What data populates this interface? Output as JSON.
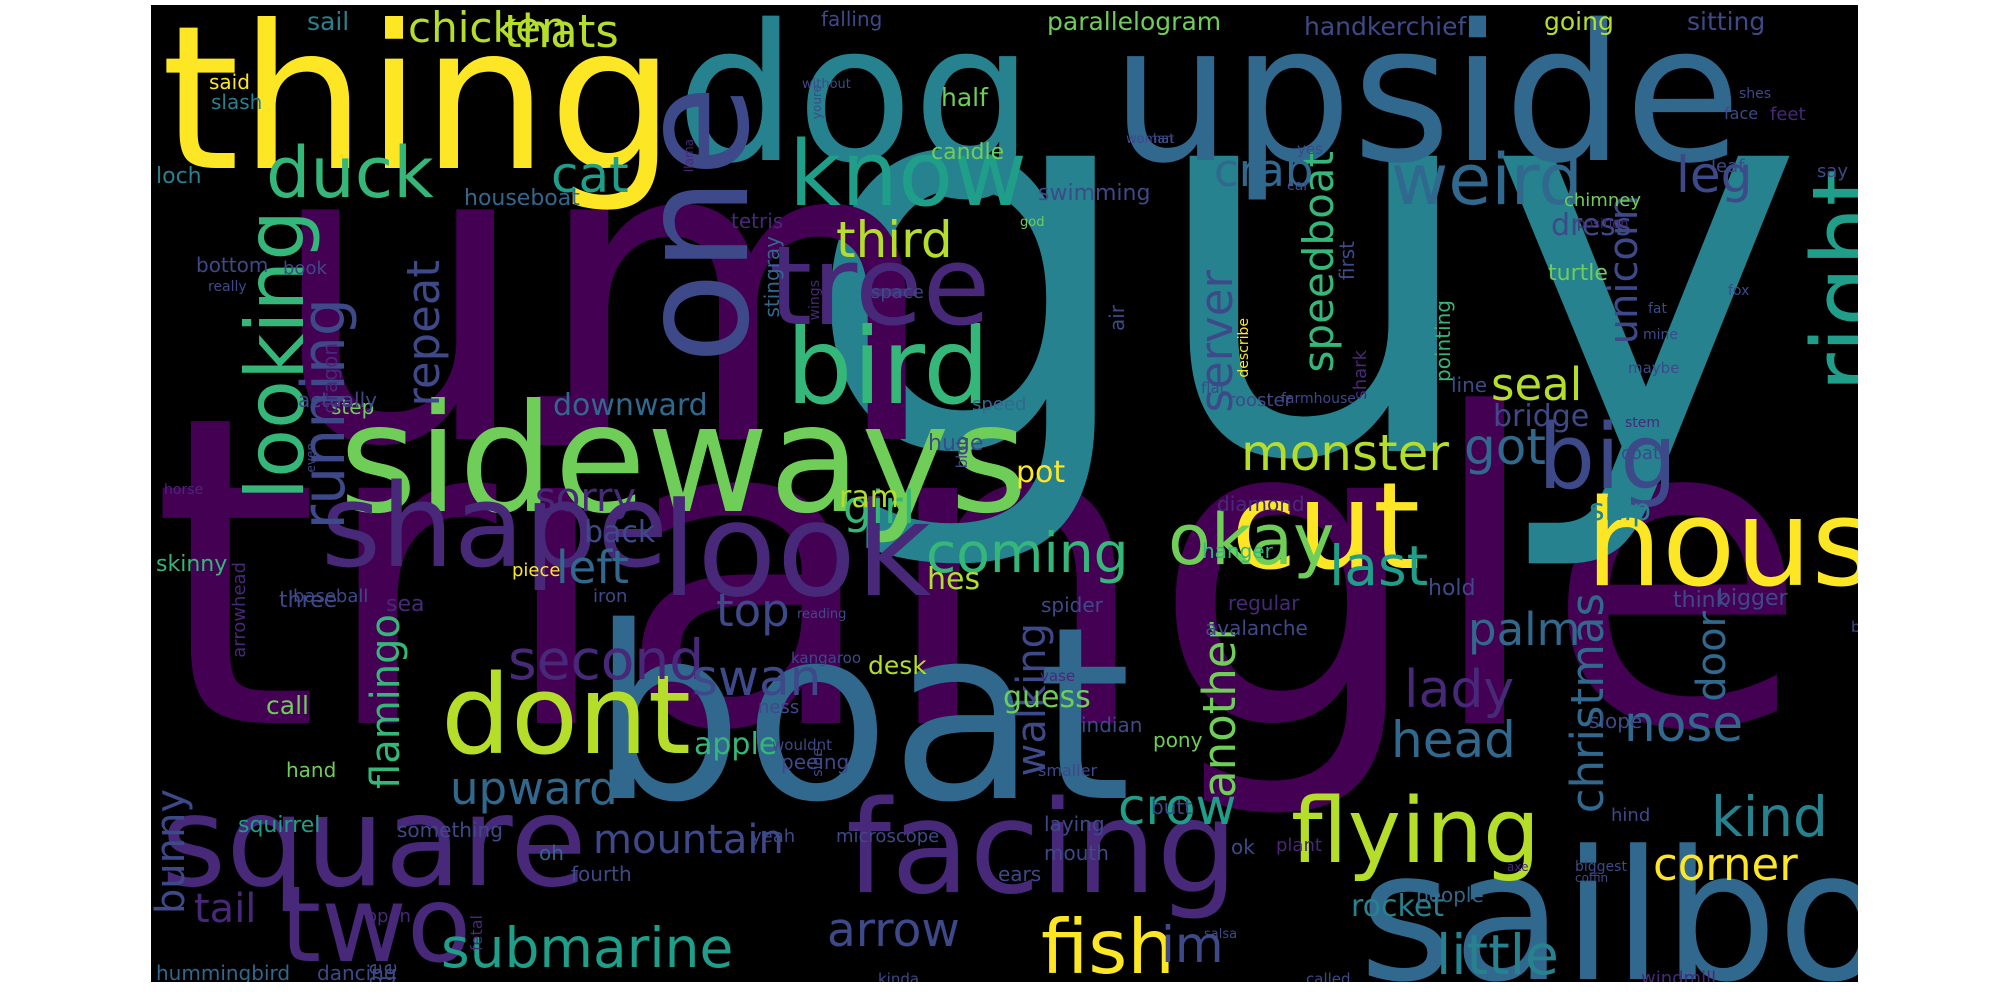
{
  "background": "#000000",
  "palette": [
    "#440154",
    "#482878",
    "#3e4989",
    "#31688e",
    "#26828e",
    "#1f9e89",
    "#35b779",
    "#6ece58",
    "#b5de2b",
    "#fde725"
  ],
  "words": [
    {
      "text": "triangle",
      "color": "#440154"
    },
    {
      "text": "guy",
      "color": "#26828e"
    },
    {
      "text": "um",
      "color": "#440154"
    },
    {
      "text": "boat",
      "color": "#31688e"
    },
    {
      "text": "dog",
      "color": "#26828e"
    },
    {
      "text": "upside",
      "color": "#31688e"
    },
    {
      "text": "thing",
      "color": "#fde725"
    },
    {
      "text": "one",
      "color": "#3e4989"
    },
    {
      "text": "sideways",
      "color": "#6ece58"
    },
    {
      "text": "sailboat",
      "color": "#31688e"
    },
    {
      "text": "look",
      "color": "#482878"
    },
    {
      "text": "facing",
      "color": "#482878"
    },
    {
      "text": "square",
      "color": "#482878"
    },
    {
      "text": "shape",
      "color": "#482878"
    },
    {
      "text": "house",
      "color": "#fde725"
    },
    {
      "text": "cut",
      "color": "#fde725"
    },
    {
      "text": "dont",
      "color": "#b5de2b"
    },
    {
      "text": "two",
      "color": "#482878"
    },
    {
      "text": "bird",
      "color": "#35b779"
    },
    {
      "text": "tree",
      "color": "#482878"
    },
    {
      "text": "know",
      "color": "#1f9e89"
    },
    {
      "text": "big",
      "color": "#3e4989"
    },
    {
      "text": "right",
      "color": "#1f9e89"
    },
    {
      "text": "looking",
      "color": "#35b779"
    },
    {
      "text": "flying",
      "color": "#b5de2b"
    },
    {
      "text": "weird",
      "color": "#31688e"
    },
    {
      "text": "okay",
      "color": "#6ece58"
    },
    {
      "text": "fish",
      "color": "#fde725"
    },
    {
      "text": "submarine",
      "color": "#1f9e89"
    },
    {
      "text": "duck",
      "color": "#35b779"
    },
    {
      "text": "running",
      "color": "#3e4989"
    },
    {
      "text": "coming",
      "color": "#35b779"
    },
    {
      "text": "monster",
      "color": "#b5de2b"
    },
    {
      "text": "crow",
      "color": "#1f9e89"
    },
    {
      "text": "little",
      "color": "#26828e"
    },
    {
      "text": "arrow",
      "color": "#3e4989"
    },
    {
      "text": "kind",
      "color": "#26828e"
    },
    {
      "text": "im",
      "color": "#3e4989"
    },
    {
      "text": "speedboat",
      "color": "#35b779"
    },
    {
      "text": "head",
      "color": "#31688e"
    },
    {
      "text": "nose",
      "color": "#31688e"
    },
    {
      "text": "second",
      "color": "#482878"
    },
    {
      "text": "lady",
      "color": "#482878"
    },
    {
      "text": "swan",
      "color": "#3e4989"
    },
    {
      "text": "last",
      "color": "#1f9e89"
    },
    {
      "text": "left",
      "color": "#31688e"
    },
    {
      "text": "third",
      "color": "#b5de2b"
    },
    {
      "text": "cat",
      "color": "#1f9e89"
    },
    {
      "text": "leg",
      "color": "#3e4989"
    },
    {
      "text": "got",
      "color": "#31688e"
    },
    {
      "text": "crab",
      "color": "#31688e"
    },
    {
      "text": "seal",
      "color": "#b5de2b"
    },
    {
      "text": "girl",
      "color": "#35b779"
    },
    {
      "text": "top",
      "color": "#3e4989"
    },
    {
      "text": "palm",
      "color": "#31688e"
    },
    {
      "text": "corner",
      "color": "#fde725"
    },
    {
      "text": "walking",
      "color": "#3e4989"
    },
    {
      "text": "another",
      "color": "#6ece58"
    },
    {
      "text": "christmas",
      "color": "#31688e"
    },
    {
      "text": "door",
      "color": "#31688e"
    },
    {
      "text": "flamingo",
      "color": "#35b779"
    },
    {
      "text": "repeat",
      "color": "#3e4989"
    },
    {
      "text": "server",
      "color": "#3e4989"
    },
    {
      "text": "unicorn",
      "color": "#3e4989"
    },
    {
      "text": "thats",
      "color": "#b5de2b"
    },
    {
      "text": "chicken",
      "color": "#b5de2b"
    },
    {
      "text": "upward",
      "color": "#31688e"
    },
    {
      "text": "mountain",
      "color": "#3e4989"
    },
    {
      "text": "tail",
      "color": "#482878"
    },
    {
      "text": "sorry",
      "color": "#482878"
    },
    {
      "text": "bunny",
      "color": "#3e4989"
    },
    {
      "text": "rocket",
      "color": "#26828e"
    },
    {
      "text": "downward",
      "color": "#31688e"
    },
    {
      "text": "dress",
      "color": "#3e4989"
    },
    {
      "text": "bridge",
      "color": "#3e4989"
    },
    {
      "text": "pot",
      "color": "#fde725"
    },
    {
      "text": "ram",
      "color": "#b5de2b"
    },
    {
      "text": "apple",
      "color": "#35b779"
    },
    {
      "text": "guess",
      "color": "#6ece58"
    },
    {
      "text": "desk",
      "color": "#b5de2b"
    },
    {
      "text": "back",
      "color": "#3e4989"
    },
    {
      "text": "hes",
      "color": "#b5de2b"
    },
    {
      "text": "call",
      "color": "#6ece58"
    },
    {
      "text": "ship",
      "color": "#26828e"
    },
    {
      "text": "parallelogram",
      "color": "#6ece58"
    },
    {
      "text": "handkerchief",
      "color": "#3e4989"
    },
    {
      "text": "going",
      "color": "#b5de2b"
    },
    {
      "text": "sitting",
      "color": "#3e4989"
    },
    {
      "text": "half",
      "color": "#6ece58"
    },
    {
      "text": "falling",
      "color": "#3e4989"
    },
    {
      "text": "sail",
      "color": "#26828e"
    },
    {
      "text": "said",
      "color": "#fde725"
    },
    {
      "text": "slash",
      "color": "#26828e"
    },
    {
      "text": "loch",
      "color": "#26828e"
    },
    {
      "text": "stingray",
      "color": "#31688e"
    },
    {
      "text": "candle",
      "color": "#6ece58"
    },
    {
      "text": "houseboat",
      "color": "#31688e"
    },
    {
      "text": "swimming",
      "color": "#3e4989"
    },
    {
      "text": "tetris",
      "color": "#482878"
    },
    {
      "text": "bottom",
      "color": "#3e4989"
    },
    {
      "text": "first",
      "color": "#3e4989"
    },
    {
      "text": "pointing",
      "color": "#35b779"
    },
    {
      "text": "turtle",
      "color": "#6ece58"
    },
    {
      "text": "line",
      "color": "#3e4989"
    },
    {
      "text": "huge",
      "color": "#3e4989"
    },
    {
      "text": "speed",
      "color": "#31688e"
    },
    {
      "text": "step",
      "color": "#6ece58"
    },
    {
      "text": "actually",
      "color": "#3e4989"
    },
    {
      "text": "dragon",
      "color": "#482878"
    },
    {
      "text": "diamond",
      "color": "#482878"
    },
    {
      "text": "hanger",
      "color": "#35b779"
    },
    {
      "text": "hold",
      "color": "#3e4989"
    },
    {
      "text": "think",
      "color": "#3e4989"
    },
    {
      "text": "bigger",
      "color": "#3e4989"
    },
    {
      "text": "skinny",
      "color": "#35b779"
    },
    {
      "text": "three",
      "color": "#3e4989"
    },
    {
      "text": "sea",
      "color": "#482878"
    },
    {
      "text": "baseball",
      "color": "#3e4989"
    },
    {
      "text": "iron",
      "color": "#3e4989"
    },
    {
      "text": "piece",
      "color": "#fde725"
    },
    {
      "text": "arrowhead",
      "color": "#482878"
    },
    {
      "text": "hand",
      "color": "#6ece58"
    },
    {
      "text": "squirrel",
      "color": "#1f9e89"
    },
    {
      "text": "something",
      "color": "#3e4989"
    },
    {
      "text": "oh",
      "color": "#31688e"
    },
    {
      "text": "fourth",
      "color": "#3e4989"
    },
    {
      "text": "ears",
      "color": "#3e4989"
    },
    {
      "text": "laying",
      "color": "#3e4989"
    },
    {
      "text": "mouth",
      "color": "#3e4989"
    },
    {
      "text": "hummingbird",
      "color": "#31688e"
    },
    {
      "text": "dancing",
      "color": "#3e4989"
    },
    {
      "text": "pipe",
      "color": "#3e4989"
    },
    {
      "text": "whale",
      "color": "#3e4989"
    },
    {
      "text": "people",
      "color": "#31688e"
    },
    {
      "text": "slope",
      "color": "#3e4989"
    },
    {
      "text": "pony",
      "color": "#6ece58"
    },
    {
      "text": "butt",
      "color": "#3e4989"
    },
    {
      "text": "peeing",
      "color": "#3e4989"
    },
    {
      "text": "yeah",
      "color": "#3e4989"
    },
    {
      "text": "microscope",
      "color": "#3e4989"
    },
    {
      "text": "ok",
      "color": "#3e4989"
    },
    {
      "text": "plant",
      "color": "#482878"
    },
    {
      "text": "hind",
      "color": "#3e4989"
    },
    {
      "text": "windmill",
      "color": "#482878"
    },
    {
      "text": "open",
      "color": "#482878"
    },
    {
      "text": "fetal",
      "color": "#482878"
    },
    {
      "text": "kinda",
      "color": "#3e4989"
    },
    {
      "text": "called",
      "color": "#3e4989"
    },
    {
      "text": "indian",
      "color": "#3e4989"
    },
    {
      "text": "spider",
      "color": "#3e4989"
    },
    {
      "text": "regular",
      "color": "#482878"
    },
    {
      "text": "avalanche",
      "color": "#3e4989"
    },
    {
      "text": "ness",
      "color": "#3e4989"
    },
    {
      "text": "kangaroo",
      "color": "#3e4989"
    },
    {
      "text": "reading",
      "color": "#3e4989"
    },
    {
      "text": "wouldnt",
      "color": "#3e4989"
    },
    {
      "text": "smaller",
      "color": "#3e4989"
    },
    {
      "text": "vase",
      "color": "#482878"
    },
    {
      "text": "side",
      "color": "#3e4989"
    },
    {
      "text": "rooster",
      "color": "#3e4989"
    },
    {
      "text": "farmhouse",
      "color": "#3e4989"
    },
    {
      "text": "shark",
      "color": "#482878"
    },
    {
      "text": "flat",
      "color": "#3e4989"
    },
    {
      "text": "coat",
      "color": "#3e4989"
    },
    {
      "text": "bear",
      "color": "#3e4989"
    },
    {
      "text": "stem",
      "color": "#482878"
    },
    {
      "text": "maybe",
      "color": "#3e4989"
    },
    {
      "text": "mine",
      "color": "#3e4989"
    },
    {
      "text": "fat",
      "color": "#3e4989"
    },
    {
      "text": "fox",
      "color": "#3e4989"
    },
    {
      "text": "describe",
      "color": "#fde725"
    },
    {
      "text": "air",
      "color": "#3e4989"
    },
    {
      "text": "space",
      "color": "#3e4989"
    },
    {
      "text": "wings",
      "color": "#482878"
    },
    {
      "text": "really",
      "color": "#3e4989"
    },
    {
      "text": "book",
      "color": "#3e4989"
    },
    {
      "text": "god",
      "color": "#6ece58"
    },
    {
      "text": "car",
      "color": "#3e4989"
    },
    {
      "text": "chimney",
      "color": "#6ece58"
    },
    {
      "text": "position",
      "color": "#482878"
    },
    {
      "text": "say",
      "color": "#3e4989"
    },
    {
      "text": "leaf",
      "color": "#3e4989"
    },
    {
      "text": "face",
      "color": "#3e4989"
    },
    {
      "text": "shes",
      "color": "#3e4989"
    },
    {
      "text": "feet",
      "color": "#482878"
    },
    {
      "text": "yes",
      "color": "#3e4989"
    },
    {
      "text": "woman",
      "color": "#3e4989"
    },
    {
      "text": "hat",
      "color": "#3e4989"
    },
    {
      "text": "youre",
      "color": "#3e4989"
    },
    {
      "text": "llama",
      "color": "#482878"
    },
    {
      "text": "without",
      "color": "#3e4989"
    },
    {
      "text": "even",
      "color": "#3e4989"
    },
    {
      "text": "blob",
      "color": "#3e4989"
    },
    {
      "text": "horse",
      "color": "#482878"
    },
    {
      "text": "axe",
      "color": "#482878"
    },
    {
      "text": "coffin",
      "color": "#3e4989"
    },
    {
      "text": "biggest",
      "color": "#3e4989"
    },
    {
      "text": "salsa",
      "color": "#3e4989"
    },
    {
      "text": "four",
      "color": "#fde725"
    }
  ]
}
